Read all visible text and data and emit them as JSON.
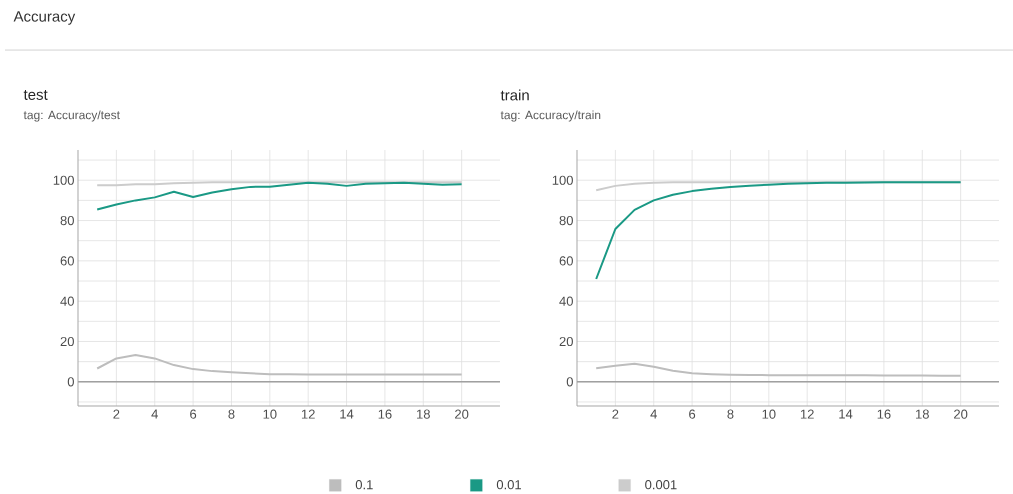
{
  "chart_data": [
    {
      "type": "line",
      "title": "test",
      "subtitle": "tag: Accuracy/test",
      "annotations": [
        "Accuracy"
      ],
      "x": [
        1,
        2,
        3,
        4,
        5,
        6,
        7,
        8,
        9,
        10,
        11,
        12,
        13,
        14,
        15,
        16,
        17,
        18,
        19,
        20
      ],
      "series": [
        {
          "name": "0.1",
          "color": "#bdbdbd",
          "values": [
            6.6,
            11.6,
            13.3,
            11.6,
            8.3,
            6.3,
            5.3,
            4.7,
            4.2,
            3.8,
            3.7,
            3.6,
            3.6,
            3.6,
            3.6,
            3.6,
            3.6,
            3.6,
            3.6,
            3.6
          ]
        },
        {
          "name": "0.01",
          "color": "#1a9985",
          "values": [
            85.5,
            88,
            90,
            91.5,
            94.3,
            91.7,
            93.9,
            95.5,
            96.7,
            96.8,
            97.8,
            98.7,
            98.2,
            97.2,
            98.2,
            98.5,
            98.7,
            98.3,
            97.8,
            98
          ]
        },
        {
          "name": "0.001",
          "color": "#cccccc",
          "values": [
            97.5,
            97.5,
            98,
            98,
            98.5,
            98.7,
            99,
            99,
            99,
            99,
            99,
            99,
            99,
            99,
            99,
            99,
            99,
            99,
            99,
            99
          ]
        }
      ],
      "xlim": [
        0,
        22
      ],
      "ylim": [
        -12,
        115
      ],
      "xticks": [
        2,
        4,
        6,
        8,
        10,
        12,
        14,
        16,
        18,
        20
      ],
      "yticks": [
        {
          "value": -10,
          "label": null
        },
        0,
        {
          "value": 10,
          "label": null
        },
        20,
        {
          "value": 30,
          "label": null
        },
        40,
        {
          "value": 50,
          "label": null
        },
        60,
        {
          "value": 70,
          "label": null
        },
        80,
        {
          "value": 90,
          "label": null
        },
        100,
        {
          "value": 110,
          "label": null
        }
      ],
      "ref_lines": [
        {
          "axis": "y",
          "value": 0,
          "color": "#a0a0a0"
        }
      ],
      "grid": true,
      "legend": "bottom",
      "line_style": "solid",
      "marker": "none"
    },
    {
      "type": "line",
      "title": "train",
      "subtitle": "tag: Accuracy/train",
      "x": [
        1,
        2,
        3,
        4,
        5,
        6,
        7,
        8,
        9,
        10,
        11,
        12,
        13,
        14,
        15,
        16,
        17,
        18,
        19,
        20
      ],
      "series": [
        {
          "color": "#bdbdbd",
          "values": [
            6.7,
            8,
            8.9,
            7.5,
            5.5,
            4.3,
            3.8,
            3.5,
            3.4,
            3.3,
            3.3,
            3.3,
            3.2,
            3.2,
            3.2,
            3.1,
            3.1,
            3.1,
            3,
            3
          ]
        },
        {
          "color": "#1a9985",
          "values": [
            51,
            75.8,
            85.3,
            90,
            92.8,
            94.6,
            95.8,
            96.7,
            97.3,
            97.8,
            98.2,
            98.5,
            98.7,
            98.8,
            98.9,
            99,
            99,
            99,
            99,
            99
          ]
        },
        {
          "color": "#cccccc",
          "values": [
            95,
            97.2,
            98.3,
            98.8,
            99,
            99,
            99,
            99,
            99,
            99,
            99,
            99,
            99,
            99,
            99,
            99,
            99,
            99,
            99,
            99
          ]
        }
      ],
      "xlim": [
        0,
        22
      ],
      "ylim": [
        -12,
        115
      ],
      "xticks": [
        2,
        4,
        6,
        8,
        10,
        12,
        14,
        16,
        18,
        20
      ],
      "yticks": [
        {
          "value": -10,
          "label": null
        },
        0,
        {
          "value": 10,
          "label": null
        },
        20,
        {
          "value": 30,
          "label": null
        },
        40,
        {
          "value": 50,
          "label": null
        },
        60,
        {
          "value": 70,
          "label": null
        },
        80,
        {
          "value": 90,
          "label": null
        },
        100,
        {
          "value": 110,
          "label": null
        }
      ],
      "ref_lines": [
        {
          "axis": "y",
          "value": 0,
          "color": "#a0a0a0"
        }
      ],
      "grid": true,
      "line_style": "solid",
      "marker": "none"
    }
  ]
}
